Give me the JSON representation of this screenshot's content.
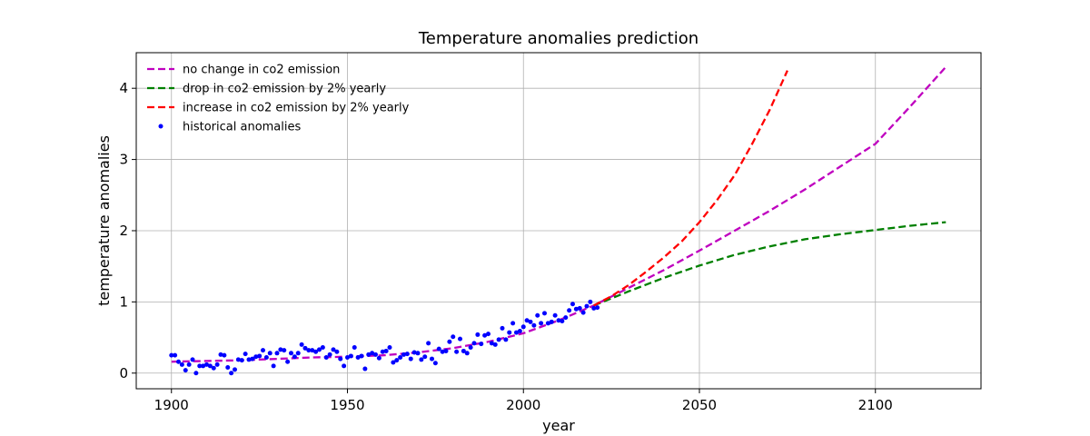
{
  "chart_data": {
    "type": "line",
    "title": "Temperature anomalies prediction",
    "xlabel": "year",
    "ylabel": "temperature anomalies",
    "xlim": [
      1890,
      2130
    ],
    "ylim": [
      -0.22,
      4.5
    ],
    "xticks": [
      1900,
      1950,
      2000,
      2050,
      2100
    ],
    "yticks": [
      0,
      1,
      2,
      3,
      4
    ],
    "grid": true,
    "legend_position": "top-left",
    "series": [
      {
        "name": "no change in co2 emission",
        "style": "dashed",
        "color": "#bf00bf",
        "x": [
          1900,
          1910,
          1920,
          1930,
          1940,
          1950,
          1960,
          1970,
          1980,
          1990,
          2000,
          2010,
          2020,
          2030,
          2040,
          2050,
          2060,
          2070,
          2080,
          2090,
          2100,
          2110,
          2120
        ],
        "y": [
          0.16,
          0.17,
          0.18,
          0.2,
          0.22,
          0.23,
          0.25,
          0.29,
          0.35,
          0.44,
          0.56,
          0.74,
          0.95,
          1.2,
          1.45,
          1.72,
          2.0,
          2.28,
          2.58,
          2.9,
          3.22,
          3.75,
          4.3
        ]
      },
      {
        "name": "drop in co2 emission by 2% yearly",
        "style": "dashed",
        "color": "#008000",
        "x": [
          2020,
          2030,
          2040,
          2050,
          2060,
          2070,
          2080,
          2090,
          2100,
          2110,
          2120
        ],
        "y": [
          0.95,
          1.15,
          1.34,
          1.51,
          1.66,
          1.78,
          1.88,
          1.95,
          2.01,
          2.07,
          2.12
        ]
      },
      {
        "name": "increase in co2 emission by 2% yearly",
        "style": "dashed",
        "color": "#ff0000",
        "x": [
          2020,
          2025,
          2030,
          2035,
          2040,
          2045,
          2050,
          2055,
          2060,
          2065,
          2070,
          2075
        ],
        "y": [
          0.95,
          1.08,
          1.24,
          1.43,
          1.63,
          1.85,
          2.12,
          2.43,
          2.78,
          3.22,
          3.7,
          4.25
        ]
      },
      {
        "name": "historical anomalies",
        "style": "points",
        "color": "#0000ff",
        "x": [
          1900,
          1901,
          1902,
          1903,
          1904,
          1905,
          1906,
          1907,
          1908,
          1909,
          1910,
          1911,
          1912,
          1913,
          1914,
          1915,
          1916,
          1917,
          1918,
          1919,
          1920,
          1921,
          1922,
          1923,
          1924,
          1925,
          1926,
          1927,
          1928,
          1929,
          1930,
          1931,
          1932,
          1933,
          1934,
          1935,
          1936,
          1937,
          1938,
          1939,
          1940,
          1941,
          1942,
          1943,
          1944,
          1945,
          1946,
          1947,
          1948,
          1949,
          1950,
          1951,
          1952,
          1953,
          1954,
          1955,
          1956,
          1957,
          1958,
          1959,
          1960,
          1961,
          1962,
          1963,
          1964,
          1965,
          1966,
          1967,
          1968,
          1969,
          1970,
          1971,
          1972,
          1973,
          1974,
          1975,
          1976,
          1977,
          1978,
          1979,
          1980,
          1981,
          1982,
          1983,
          1984,
          1985,
          1986,
          1987,
          1988,
          1989,
          1990,
          1991,
          1992,
          1993,
          1994,
          1995,
          1996,
          1997,
          1998,
          1999,
          2000,
          2001,
          2002,
          2003,
          2004,
          2005,
          2006,
          2007,
          2008,
          2009,
          2010,
          2011,
          2012,
          2013,
          2014,
          2015,
          2016,
          2017,
          2018,
          2019,
          2020,
          2021
        ],
        "y": [
          0.25,
          0.25,
          0.16,
          0.12,
          0.04,
          0.12,
          0.19,
          0.0,
          0.1,
          0.1,
          0.12,
          0.1,
          0.07,
          0.12,
          0.26,
          0.25,
          0.08,
          0.0,
          0.05,
          0.19,
          0.18,
          0.27,
          0.19,
          0.2,
          0.23,
          0.24,
          0.32,
          0.22,
          0.28,
          0.1,
          0.28,
          0.33,
          0.32,
          0.16,
          0.28,
          0.23,
          0.28,
          0.4,
          0.35,
          0.32,
          0.32,
          0.3,
          0.33,
          0.36,
          0.22,
          0.26,
          0.33,
          0.3,
          0.2,
          0.1,
          0.22,
          0.24,
          0.36,
          0.22,
          0.24,
          0.06,
          0.26,
          0.28,
          0.26,
          0.21,
          0.3,
          0.31,
          0.36,
          0.15,
          0.18,
          0.22,
          0.26,
          0.27,
          0.2,
          0.29,
          0.28,
          0.19,
          0.23,
          0.42,
          0.2,
          0.14,
          0.34,
          0.3,
          0.31,
          0.44,
          0.51,
          0.3,
          0.48,
          0.31,
          0.28,
          0.36,
          0.42,
          0.54,
          0.41,
          0.53,
          0.55,
          0.42,
          0.4,
          0.47,
          0.63,
          0.47,
          0.57,
          0.7,
          0.57,
          0.59,
          0.65,
          0.74,
          0.72,
          0.67,
          0.81,
          0.7,
          0.84,
          0.7,
          0.72,
          0.81,
          0.74,
          0.73,
          0.78,
          0.88,
          0.97,
          0.9,
          0.91,
          0.85,
          0.94,
          1.0,
          0.91,
          0.92
        ]
      }
    ]
  }
}
